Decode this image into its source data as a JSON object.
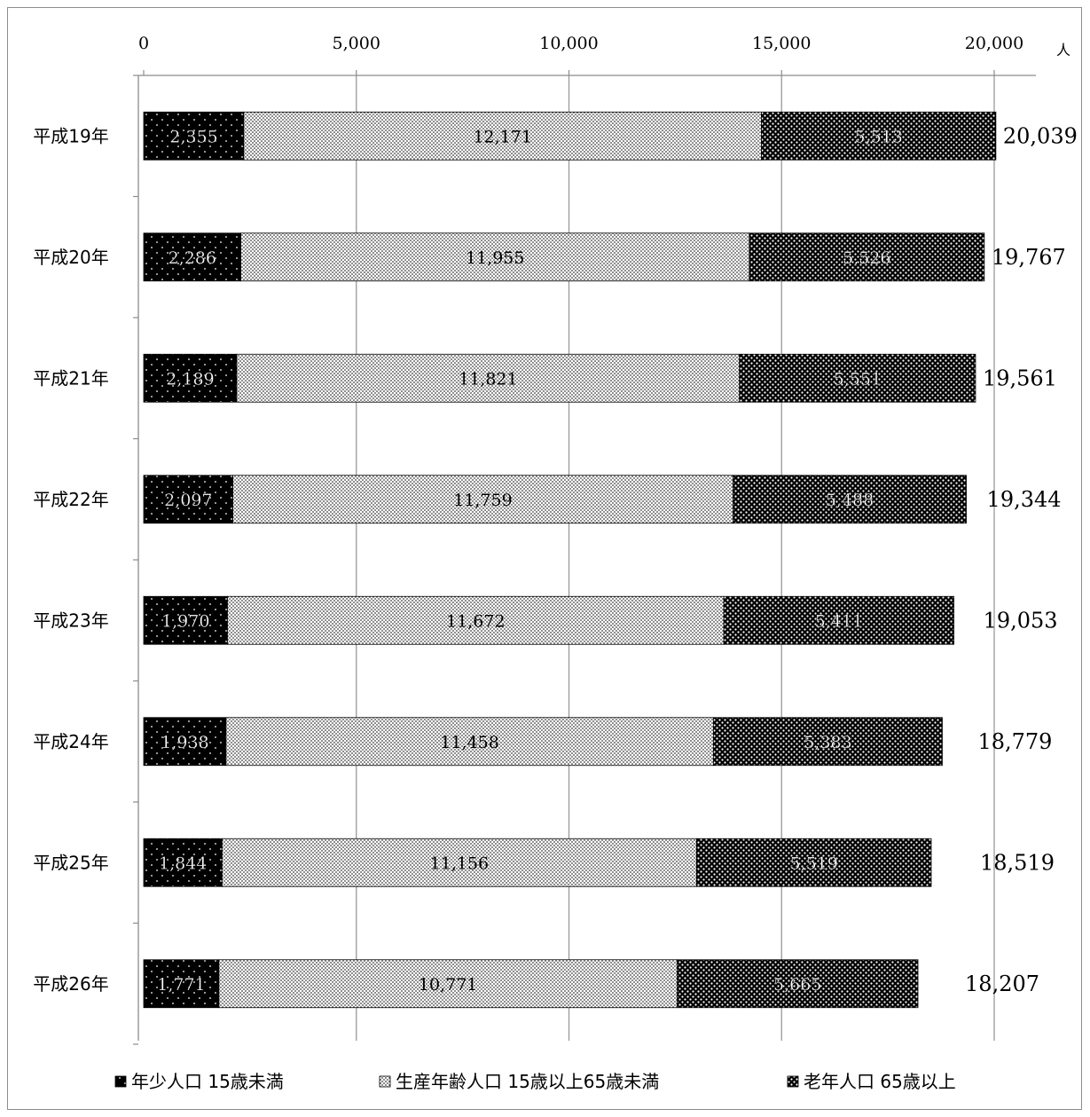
{
  "chart_data": {
    "type": "bar",
    "orientation": "horizontal",
    "stacked": true,
    "categories": [
      "平成19年",
      "平成20年",
      "平成21年",
      "平成22年",
      "平成23年",
      "平成24年",
      "平成25年",
      "平成26年"
    ],
    "series": [
      {
        "name": "年少人口 15歳未満",
        "values": [
          2355,
          2286,
          2189,
          2097,
          1970,
          1938,
          1844,
          1771
        ],
        "labels": [
          "2,355",
          "2,286",
          "2,189",
          "2,097",
          "1,970",
          "1,938",
          "1,844",
          "1,771"
        ]
      },
      {
        "name": "生産年齢人口 15歳以上65歳未満",
        "values": [
          12171,
          11955,
          11821,
          11759,
          11672,
          11458,
          11156,
          10771
        ],
        "labels": [
          "12,171",
          "11,955",
          "11,821",
          "11,759",
          "11,672",
          "11,458",
          "11,156",
          "10,771"
        ]
      },
      {
        "name": "老年人口 65歳以上",
        "values": [
          5513,
          5526,
          5551,
          5488,
          5411,
          5383,
          5519,
          5665
        ],
        "labels": [
          "5,513",
          "5,526",
          "5,551",
          "5,488",
          "5,411",
          "5,383",
          "5,519",
          "5,665"
        ]
      }
    ],
    "totals": [
      "20,039",
      "19,767",
      "19,561",
      "19,344",
      "19,053",
      "18,779",
      "18,519",
      "18,207"
    ],
    "x_ticks": [
      "0",
      "5,000",
      "10,000",
      "15,000",
      "20,000"
    ],
    "xlim": [
      0,
      20000
    ],
    "x_unit": "人",
    "grid": true,
    "legend_position": "bottom",
    "colors": {
      "series1": "#000000",
      "series2": "#ffffff",
      "series3": "#1a1a1a",
      "grid": "#9a9a9a",
      "axis": "#8c8c8c"
    }
  }
}
